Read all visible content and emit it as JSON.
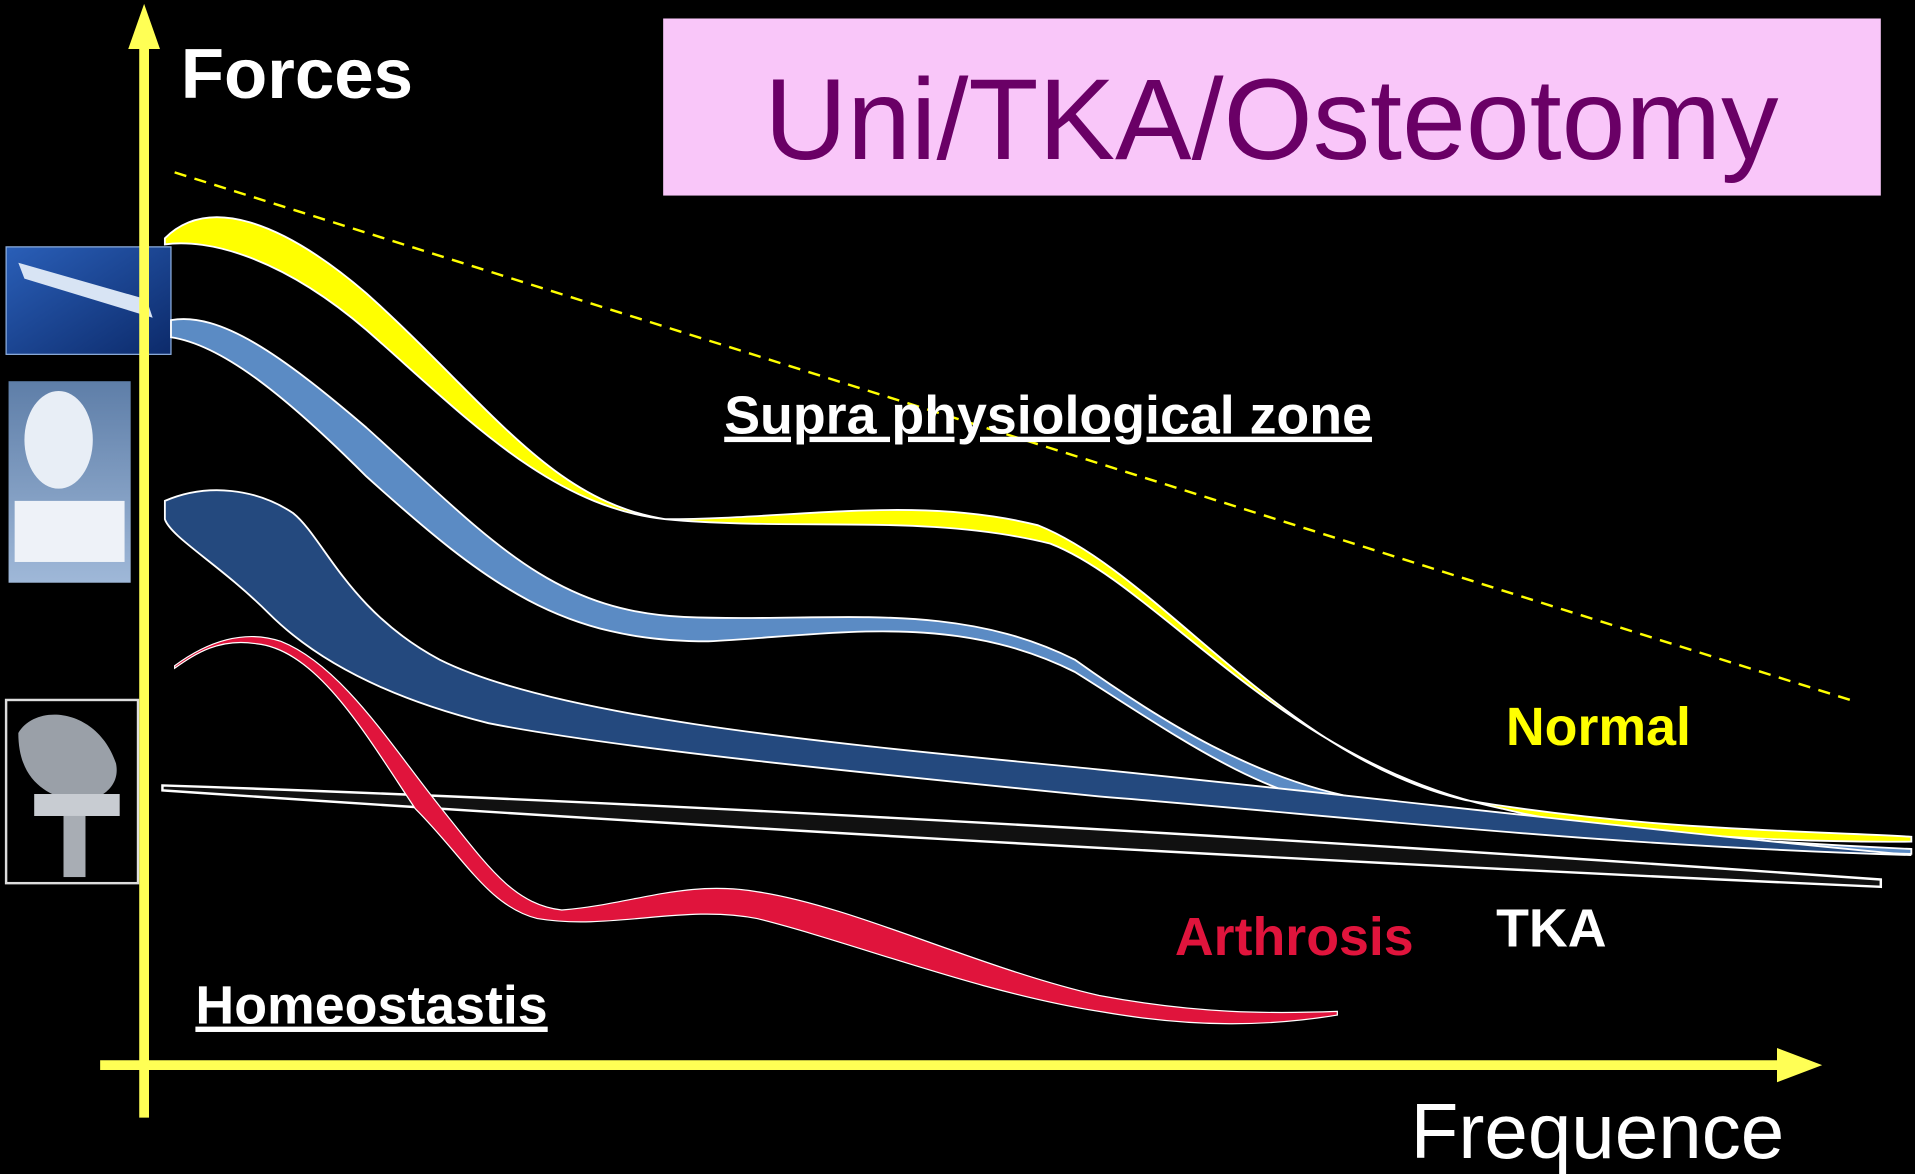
{
  "title": "Uni/TKA/Osteotomy",
  "axes": {
    "y_label": "Forces",
    "x_label": "Frequence"
  },
  "zones": {
    "upper": "Supra physiological zone",
    "lower": "Homeostastis"
  },
  "curve_labels": {
    "normal": "Normal",
    "arthrosis": "Arthrosis",
    "tka": "TKA"
  }
}
